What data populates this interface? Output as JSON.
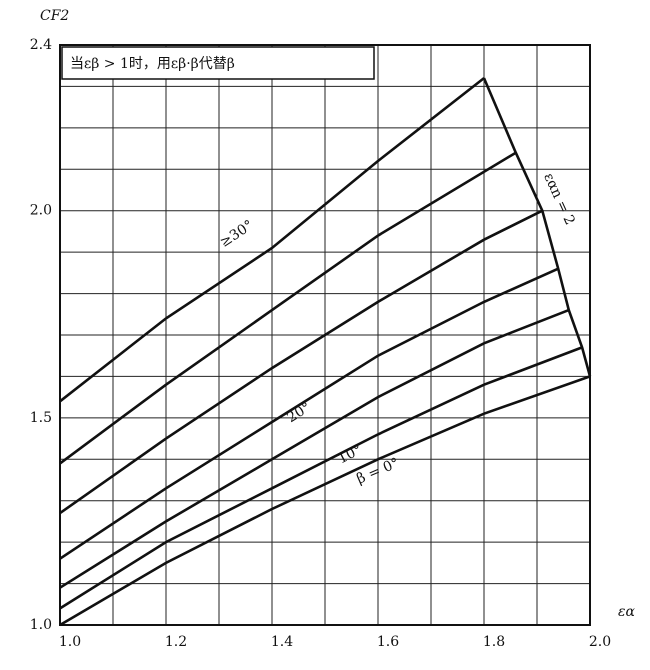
{
  "chart_data": {
    "type": "line",
    "title": "当εβ > 1时，用εβ·β代替β",
    "ylabel": "CF2",
    "xlabel": "εα",
    "xlim": [
      1.0,
      2.0
    ],
    "ylim": [
      1.0,
      2.4
    ],
    "xticks": [
      {
        "value": 1,
        "label": "1.0"
      },
      {
        "value": 1.2,
        "label": "1.2"
      },
      {
        "value": 1.4,
        "label": "1.4"
      },
      {
        "value": 1.6,
        "label": "1.6"
      },
      {
        "value": 1.8,
        "label": "1.8"
      },
      {
        "value": 2,
        "label": "2.0"
      }
    ],
    "yticks": [
      {
        "value": 1,
        "label": "1.0"
      },
      {
        "value": 1.5,
        "label": "1.5"
      },
      {
        "value": 2,
        "label": "2.0"
      },
      {
        "value": 2.4,
        "label": "2.4"
      }
    ],
    "xgrid": [
      1.1,
      1.3,
      1.5,
      1.7,
      1.9
    ],
    "ygrid": [
      1.1,
      1.2,
      1.3,
      1.4,
      1.6,
      1.7,
      1.8,
      1.9,
      2.1,
      2.2,
      2.3
    ],
    "grid": true,
    "series": [
      {
        "name": "≥30°",
        "color": "#111111",
        "x": [
          1.0,
          1.2,
          1.4,
          1.6,
          1.8
        ],
        "values": [
          1.54,
          1.74,
          1.91,
          2.12,
          2.32
        ]
      },
      {
        "name": null,
        "color": "#111111",
        "x": [
          1.0,
          1.2,
          1.4,
          1.6,
          1.86
        ],
        "values": [
          1.39,
          1.58,
          1.76,
          1.94,
          2.14
        ]
      },
      {
        "name": null,
        "color": "#111111",
        "x": [
          1.0,
          1.2,
          1.4,
          1.6,
          1.8,
          1.91
        ],
        "values": [
          1.27,
          1.45,
          1.62,
          1.78,
          1.93,
          2.0
        ]
      },
      {
        "name": "20°",
        "color": "#111111",
        "x": [
          1.0,
          1.2,
          1.4,
          1.6,
          1.8,
          1.94
        ],
        "values": [
          1.16,
          1.33,
          1.49,
          1.65,
          1.78,
          1.86
        ]
      },
      {
        "name": null,
        "color": "#111111",
        "x": [
          1.0,
          1.2,
          1.4,
          1.6,
          1.8,
          1.96
        ],
        "values": [
          1.09,
          1.25,
          1.4,
          1.55,
          1.68,
          1.76
        ]
      },
      {
        "name": "10°",
        "color": "#111111",
        "x": [
          1.0,
          1.2,
          1.4,
          1.6,
          1.8,
          1.985
        ],
        "values": [
          1.04,
          1.2,
          1.33,
          1.46,
          1.58,
          1.67
        ]
      },
      {
        "name": "β = 0°",
        "color": "#111111",
        "x": [
          1.0,
          1.2,
          1.4,
          1.6,
          1.8,
          2.0
        ],
        "values": [
          1.0,
          1.15,
          1.28,
          1.4,
          1.51,
          1.6
        ]
      },
      {
        "name": "εαn = 2",
        "color": "#111111",
        "x": [
          1.8,
          1.86,
          1.91,
          1.94,
          1.96,
          1.985,
          2.0
        ],
        "values": [
          2.32,
          2.14,
          2.0,
          1.86,
          1.76,
          1.67,
          1.6
        ]
      }
    ]
  }
}
